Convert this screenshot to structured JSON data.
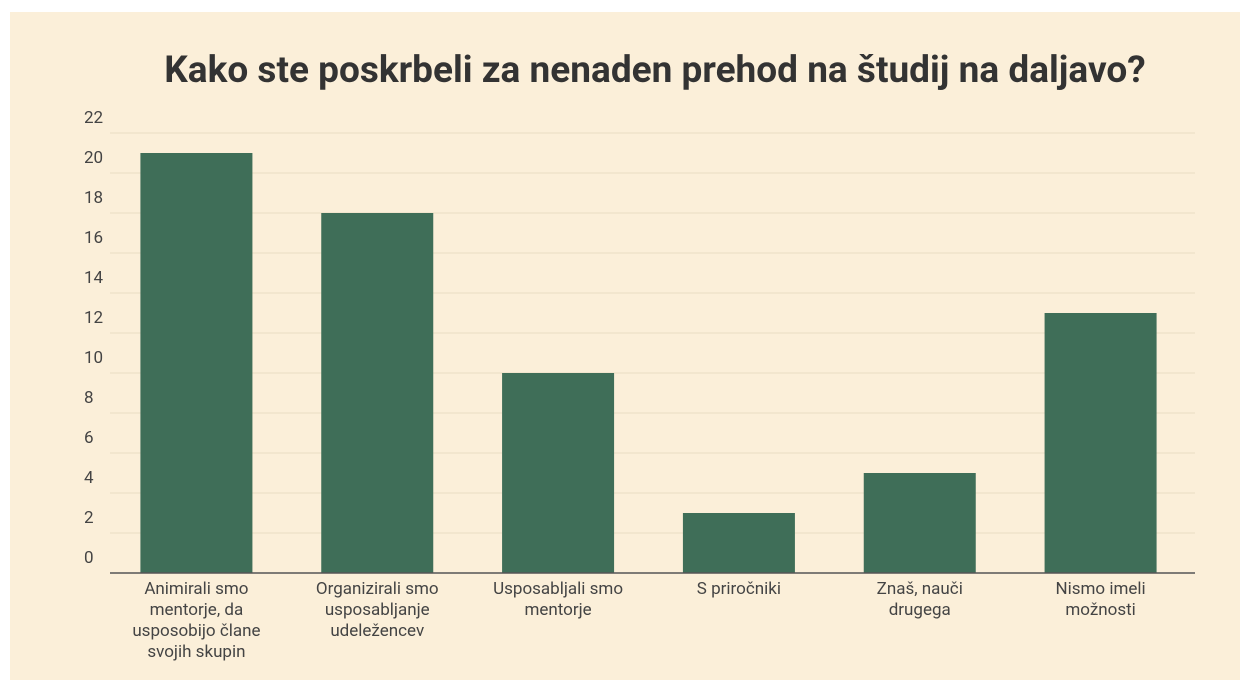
{
  "chart_data": {
    "type": "bar",
    "title": "Kako ste poskrbeli za nenaden prehod na študij na daljavo?",
    "categories": [
      "Animirali smo mentorje, da usposobijo člane svojih skupin",
      "Organizirali smo usposabljanje udeležencev",
      "Usposabljali smo mentorje",
      "S priročniki",
      "Znaš, nauči drugega",
      "Nismo imeli možnosti"
    ],
    "values": [
      21,
      18,
      10,
      3,
      5,
      13
    ],
    "color": "#3f6e58",
    "ylim": [
      0,
      22
    ],
    "yticks": [
      0,
      2,
      4,
      6,
      8,
      10,
      12,
      14,
      16,
      18,
      20,
      22
    ],
    "grid": true
  }
}
